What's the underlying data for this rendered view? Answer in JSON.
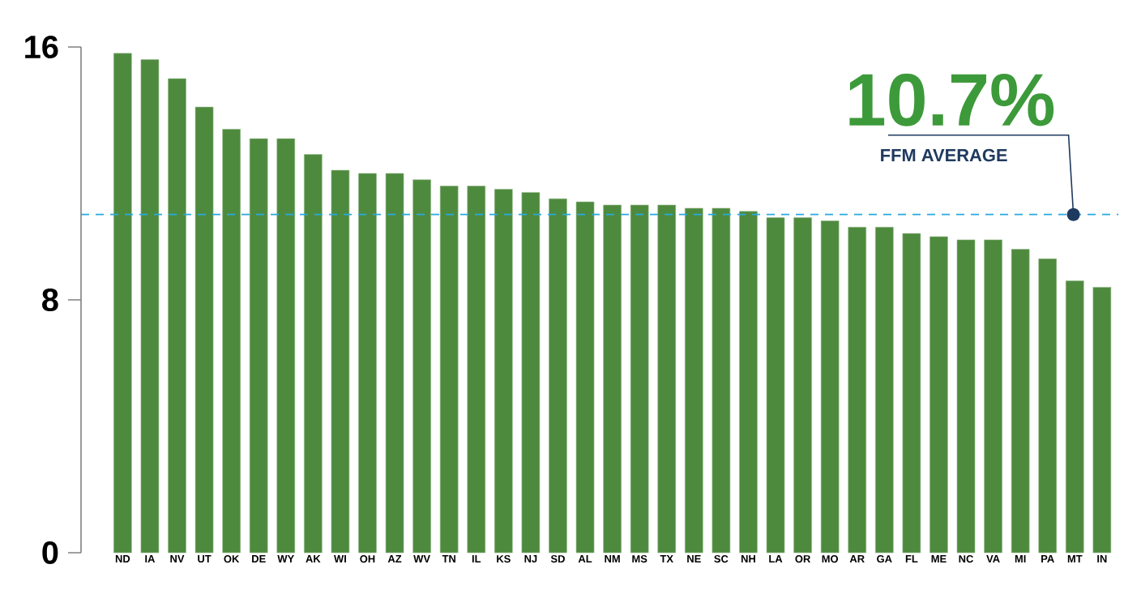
{
  "chart_data": {
    "type": "bar",
    "categories": [
      "ND",
      "IA",
      "NV",
      "UT",
      "OK",
      "DE",
      "WY",
      "AK",
      "WI",
      "OH",
      "AZ",
      "WV",
      "TN",
      "IL",
      "KS",
      "NJ",
      "SD",
      "AL",
      "NM",
      "MS",
      "TX",
      "NE",
      "SC",
      "NH",
      "LA",
      "OR",
      "MO",
      "AR",
      "GA",
      "FL",
      "ME",
      "NC",
      "VA",
      "MI",
      "PA",
      "MT",
      "IN"
    ],
    "values": [
      15.8,
      15.6,
      15.0,
      14.1,
      13.4,
      13.1,
      13.1,
      12.6,
      12.1,
      12.0,
      12.0,
      11.8,
      11.6,
      11.6,
      11.5,
      11.4,
      11.2,
      11.1,
      11.0,
      11.0,
      11.0,
      10.9,
      10.9,
      10.8,
      10.6,
      10.6,
      10.5,
      10.3,
      10.3,
      10.1,
      10.0,
      9.9,
      9.9,
      9.6,
      9.3,
      8.6,
      8.4
    ],
    "color": "#4e8a3e",
    "ylim": [
      0,
      16
    ],
    "yticks": [
      0,
      8,
      16
    ],
    "ref_lines": [
      {
        "axis": "y",
        "value": 10.7,
        "label": "FFM AVERAGE",
        "color": "#29a8e0",
        "line_style": "dashed"
      }
    ],
    "annotations": [
      "10.7%"
    ]
  }
}
